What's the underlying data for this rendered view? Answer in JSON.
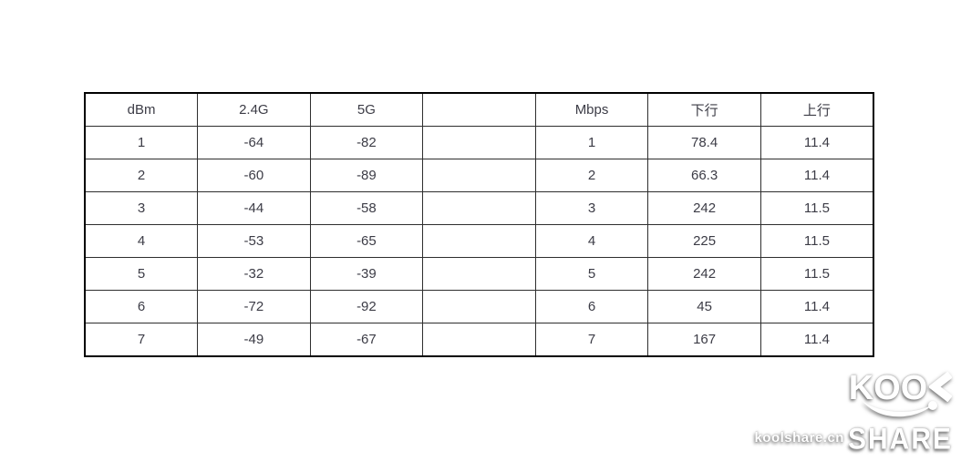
{
  "chart_data": {
    "type": "table",
    "columns": [
      "dBm",
      "2.4G",
      "5G",
      "",
      "Mbps",
      "下行",
      "上行"
    ],
    "rows": [
      [
        "1",
        "-64",
        "-82",
        "",
        "1",
        "78.4",
        "11.4"
      ],
      [
        "2",
        "-60",
        "-89",
        "",
        "2",
        "66.3",
        "11.4"
      ],
      [
        "3",
        "-44",
        "-58",
        "",
        "3",
        "242",
        "11.5"
      ],
      [
        "4",
        "-53",
        "-65",
        "",
        "4",
        "225",
        "11.5"
      ],
      [
        "5",
        "-32",
        "-39",
        "",
        "5",
        "242",
        "11.5"
      ],
      [
        "6",
        "-72",
        "-92",
        "",
        "6",
        "45",
        "11.4"
      ],
      [
        "7",
        "-49",
        "-67",
        "",
        "7",
        "167",
        "11.4"
      ]
    ]
  },
  "watermark": {
    "brand_top": "KOO",
    "brand_bottom": "SHARE",
    "site": "koolshare.cn"
  },
  "icons": {
    "stylized_l": "chevron-left-glyph (stylized L of KOOL logo)",
    "smile": "smile-arc"
  },
  "colors": {
    "page_background": "#ffffff",
    "table_text": "#3c3c46",
    "table_border_outer": "#000000",
    "table_border_inner": "#2e2e2e",
    "watermark_text": "#ffffff"
  }
}
